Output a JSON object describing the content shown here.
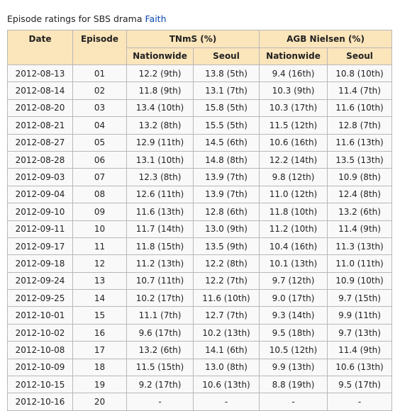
{
  "caption": {
    "text": "Episode ratings for SBS drama",
    "link": "Faith"
  },
  "table": {
    "header": {
      "date": "Date",
      "episode": "Episode",
      "group1": "TNmS (%)",
      "group2": "AGB Nielsen (%)",
      "sub": [
        "Nationwide",
        "Seoul",
        "Nationwide",
        "Seoul"
      ]
    },
    "rows": [
      [
        "2012-08-13",
        "01",
        "12.2 (9th)",
        "13.8 (5th)",
        "9.4 (16th)",
        "10.8 (10th)"
      ],
      [
        "2012-08-14",
        "02",
        "11.8 (9th)",
        "13.1 (7th)",
        "10.3 (9th)",
        "11.4 (7th)"
      ],
      [
        "2012-08-20",
        "03",
        "13.4 (10th)",
        "15.8 (5th)",
        "10.3 (17th)",
        "11.6 (10th)"
      ],
      [
        "2012-08-21",
        "04",
        "13.2 (8th)",
        "15.5 (5th)",
        "11.5 (12th)",
        "12.8 (7th)"
      ],
      [
        "2012-08-27",
        "05",
        "12.9 (11th)",
        "14.5 (6th)",
        "10.6 (16th)",
        "11.6 (13th)"
      ],
      [
        "2012-08-28",
        "06",
        "13.1 (10th)",
        "14.8 (8th)",
        "12.2 (14th)",
        "13.5 (13th)"
      ],
      [
        "2012-09-03",
        "07",
        "12.3 (8th)",
        "13.9 (7th)",
        "9.8 (12th)",
        "10.9 (8th)"
      ],
      [
        "2012-09-04",
        "08",
        "12.6 (11th)",
        "13.9 (7th)",
        "11.0 (12th)",
        "12.4 (8th)"
      ],
      [
        "2012-09-10",
        "09",
        "11.6 (13th)",
        "12.8 (6th)",
        "11.8 (10th)",
        "13.2 (6th)"
      ],
      [
        "2012-09-11",
        "10",
        "11.7 (14th)",
        "13.0 (9th)",
        "11.2 (10th)",
        "11.4 (9th)"
      ],
      [
        "2012-09-17",
        "11",
        "11.8 (15th)",
        "13.5 (9th)",
        "10.4 (16th)",
        "11.3 (13th)"
      ],
      [
        "2012-09-18",
        "12",
        "11.2 (13th)",
        "12.2 (8th)",
        "10.1 (13th)",
        "11.0 (11th)"
      ],
      [
        "2012-09-24",
        "13",
        "10.7 (11th)",
        "12.2 (7th)",
        "9.7 (12th)",
        "10.9 (10th)"
      ],
      [
        "2012-09-25",
        "14",
        "10.2 (17th)",
        "11.6 (10th)",
        "9.0 (17th)",
        "9.7 (15th)"
      ],
      [
        "2012-10-01",
        "15",
        "11.1 (7th)",
        "12.7 (7th)",
        "9.3 (14th)",
        "9.9 (11th)"
      ],
      [
        "2012-10-02",
        "16",
        "9.6 (17th)",
        "10.2 (13th)",
        "9.5 (18th)",
        "9.7 (13th)"
      ],
      [
        "2012-10-08",
        "17",
        "13.2 (6th)",
        "14.1 (6th)",
        "10.5 (12th)",
        "11.4 (9th)"
      ],
      [
        "2012-10-09",
        "18",
        "11.5 (15th)",
        "13.0 (8th)",
        "9.9 (13th)",
        "10.6 (13th)"
      ],
      [
        "2012-10-15",
        "19",
        "9.2 (17th)",
        "10.6 (13th)",
        "8.8 (19th)",
        "9.5 (17th)"
      ],
      [
        "2012-10-16",
        "20",
        "-",
        "-",
        "-",
        "-"
      ]
    ]
  }
}
